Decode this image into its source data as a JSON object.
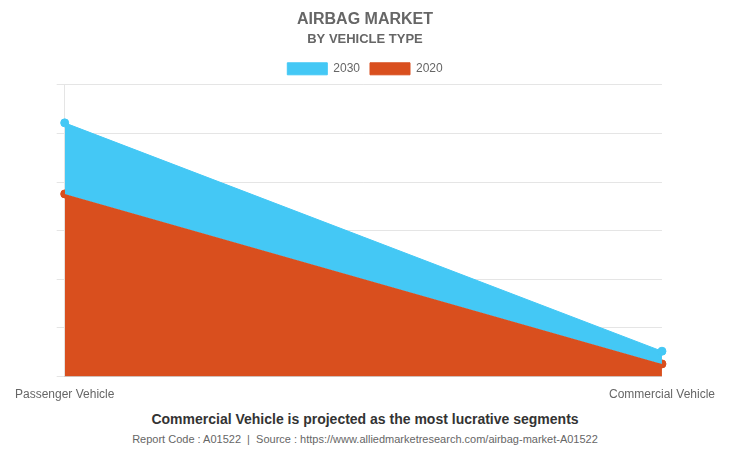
{
  "chart_data": {
    "type": "area",
    "title": "AIRBAG MARKET",
    "subtitle": "BY VEHICLE TYPE",
    "categories": [
      "Passenger Vehicle",
      "Commercial Vehicle"
    ],
    "series": [
      {
        "name": "2020",
        "color": "#d94f1e",
        "values": [
          0.72,
          0.05
        ]
      },
      {
        "name": "2030",
        "color": "#44c8f5",
        "values": [
          1.0,
          0.1
        ]
      }
    ],
    "ylim": [
      0,
      1.15
    ],
    "yticks": [
      0,
      0.19166666666666668,
      0.38333333333333336,
      0.575,
      0.7666666666666667,
      0.9583333333333334,
      1.15
    ],
    "grid": true,
    "legend": "top",
    "tick_labels": "x",
    "annotations": [
      "Commercial Vehicle is projected as the most lucrative segments",
      "Report Code : A01522  |  Source : https://www.alliedmarketresearch.com/airbag-market-A01522"
    ]
  }
}
